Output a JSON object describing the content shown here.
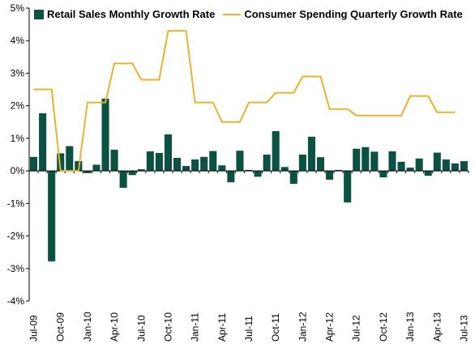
{
  "chart_data": {
    "type": "bar+line",
    "ylim": [
      -4,
      5
    ],
    "yticks": [
      "-4%",
      "-3%",
      "-2%",
      "-1%",
      "0%",
      "1%",
      "2%",
      "3%",
      "4%",
      "5%"
    ],
    "x": [
      "Jul-09",
      "Aug-09",
      "Sep-09",
      "Oct-09",
      "Nov-09",
      "Dec-09",
      "Jan-10",
      "Feb-10",
      "Mar-10",
      "Apr-10",
      "May-10",
      "Jun-10",
      "Jul-10",
      "Aug-10",
      "Sep-10",
      "Oct-10",
      "Nov-10",
      "Dec-10",
      "Jan-11",
      "Feb-11",
      "Mar-11",
      "Apr-11",
      "May-11",
      "Jun-11",
      "Jul-11",
      "Aug-11",
      "Sep-11",
      "Oct-11",
      "Nov-11",
      "Dec-11",
      "Jan-12",
      "Feb-12",
      "Mar-12",
      "Apr-12",
      "May-12",
      "Jun-12",
      "Jul-12",
      "Aug-12",
      "Sep-12",
      "Oct-12",
      "Nov-12",
      "Dec-12",
      "Jan-13",
      "Feb-13",
      "Mar-13",
      "Apr-13",
      "May-13",
      "Jun-13",
      "Jul-13"
    ],
    "xtick_labels": [
      "Jul-09",
      "Oct-09",
      "Jan-10",
      "Apr-10",
      "Jul-10",
      "Oct-10",
      "Jan-11",
      "Apr-11",
      "Jul-11",
      "Oct-11",
      "Jan-12",
      "Apr-12",
      "Jul-12",
      "Oct-12",
      "Jan-13",
      "Apr-13",
      "Jul-13"
    ],
    "grid": false,
    "legend": "top",
    "series": [
      {
        "name": "Retail Sales Monthly Growth Rate",
        "kind": "bar",
        "color": "#0b5243",
        "values": [
          0.43,
          1.77,
          -2.78,
          0.54,
          0.76,
          0.3,
          -0.07,
          0.19,
          2.22,
          0.65,
          -0.52,
          -0.13,
          0.05,
          0.6,
          0.55,
          1.12,
          0.4,
          0.15,
          0.35,
          0.43,
          0.61,
          0.17,
          -0.35,
          0.62,
          0.03,
          -0.18,
          0.5,
          1.22,
          0.12,
          -0.4,
          0.5,
          1.05,
          0.42,
          -0.27,
          0.03,
          -0.97,
          0.68,
          0.73,
          0.59,
          -0.2,
          0.6,
          0.28,
          0.1,
          0.38,
          -0.15,
          0.56,
          0.35,
          0.23,
          0.3
        ]
      },
      {
        "name": "Consumer Spending Quarterly Growth Rate",
        "kind": "line",
        "color": "#e8b32b",
        "values": [
          2.5,
          2.5,
          2.5,
          0.0,
          0.0,
          0.0,
          2.1,
          2.1,
          2.1,
          3.3,
          3.3,
          3.3,
          2.8,
          2.8,
          2.8,
          4.3,
          4.3,
          4.3,
          2.1,
          2.1,
          2.1,
          1.5,
          1.5,
          1.5,
          2.1,
          2.1,
          2.1,
          2.4,
          2.4,
          2.4,
          2.9,
          2.9,
          2.9,
          1.9,
          1.9,
          1.9,
          1.7,
          1.7,
          1.7,
          1.7,
          1.7,
          1.7,
          2.3,
          2.3,
          2.3,
          1.8,
          1.8,
          1.8,
          null
        ]
      }
    ]
  }
}
